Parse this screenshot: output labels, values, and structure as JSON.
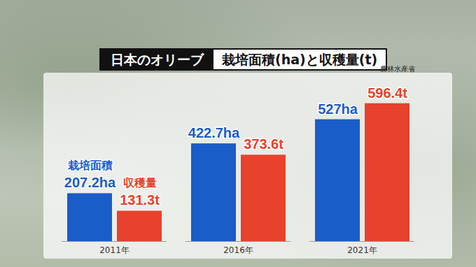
{
  "chart_data": {
    "type": "bar",
    "title": "日本のオリーブ",
    "subtitle": "栽培面積(ha)と収穫量(t)",
    "source": "農林水産省",
    "categories": [
      "2011年",
      "2016年",
      "2021年"
    ],
    "series": [
      {
        "name": "栽培面積",
        "color": "#1a5cc8",
        "values": [
          207.2,
          422.7,
          527
        ],
        "value_labels": [
          "207.2ha",
          "422.7ha",
          "527ha"
        ]
      },
      {
        "name": "収穫量",
        "color": "#e8412c",
        "values": [
          131.3,
          373.6,
          596.4
        ],
        "value_labels": [
          "131.3t",
          "373.6t",
          "596.4t"
        ]
      }
    ],
    "ylim": [
      0,
      680
    ],
    "tick_labels": "x",
    "data_labels": true
  }
}
